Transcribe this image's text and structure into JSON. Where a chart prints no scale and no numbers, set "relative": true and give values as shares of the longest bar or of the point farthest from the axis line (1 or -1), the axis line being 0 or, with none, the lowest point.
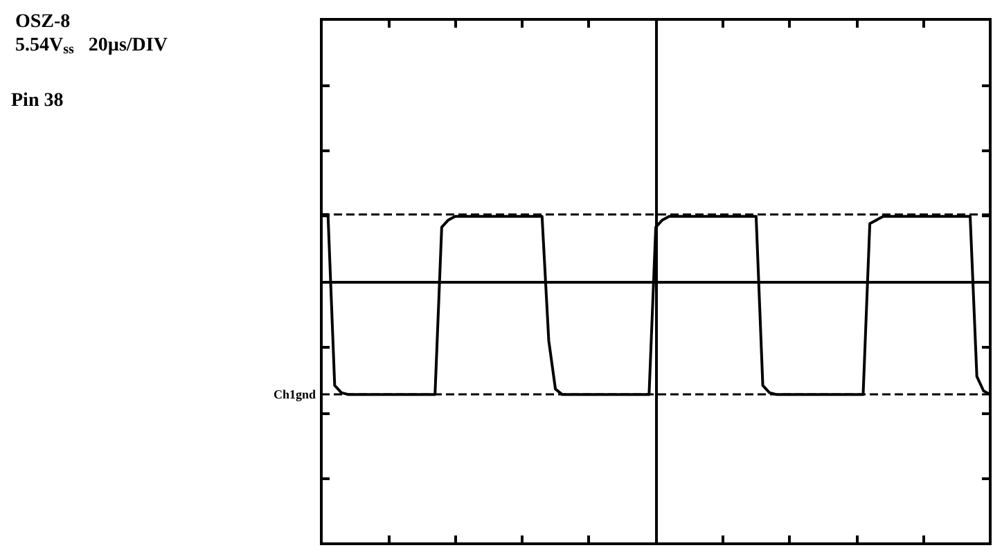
{
  "chart_data": {
    "type": "line",
    "title": "OSZ-8",
    "subtitle": "5.54V$_{ss}$   20µs/DIV",
    "annotations": [
      "Pin 38"
    ],
    "relative": true,
    "categories": [
      null,
      null,
      null,
      null,
      null,
      null,
      null,
      null,
      null,
      null,
      null,
      null,
      null,
      null,
      null,
      null,
      null,
      null,
      null,
      null,
      null,
      null,
      null,
      null,
      null,
      null,
      null,
      null,
      null,
      null,
      null,
      null,
      null,
      null,
      null,
      null,
      null,
      null,
      null,
      null,
      null,
      null,
      null,
      null,
      null,
      null,
      null,
      null,
      null,
      null,
      null,
      null,
      null,
      null,
      null,
      null,
      null,
      null,
      null,
      null,
      null,
      null,
      null,
      null,
      null,
      null,
      null,
      null,
      null,
      null,
      null,
      null,
      null,
      null,
      null,
      null,
      null,
      null,
      null,
      null,
      null,
      null,
      null,
      null,
      null,
      null,
      null,
      null,
      null,
      null,
      null,
      null,
      null,
      null,
      null,
      null,
      null,
      null,
      null,
      null,
      null
    ],
    "series": [
      {
        "color": "#000000",
        "values": [
          1,
          1,
          0.05,
          0.01,
          0,
          0,
          0,
          0,
          0,
          0,
          0,
          0,
          0,
          0,
          0,
          0,
          0,
          0,
          0.93,
          0.97,
          0.99,
          0.99,
          0.99,
          0.99,
          0.99,
          0.99,
          0.99,
          0.99,
          0.99,
          0.99,
          0.99,
          0.99,
          0.99,
          0.99,
          0.3,
          0.03,
          0,
          0,
          0,
          0,
          0,
          0,
          0,
          0,
          0,
          0,
          0,
          0,
          0,
          0,
          0.93,
          0.97,
          0.99,
          0.99,
          0.99,
          0.99,
          0.99,
          0.99,
          0.99,
          0.99,
          0.99,
          0.99,
          0.99,
          0.99,
          0.99,
          0.99,
          0.05,
          0.01,
          0,
          0,
          0,
          0,
          0,
          0,
          0,
          0,
          0,
          0,
          0,
          0,
          0,
          0,
          0.95,
          0.97,
          0.99,
          0.99,
          0.99,
          0.99,
          0.99,
          0.99,
          0.99,
          0.99,
          0.99,
          0.99,
          0.99,
          0.99,
          0.99,
          0.99,
          0.1,
          0.02,
          0
        ]
      }
    ],
    "marker": "none",
    "line_style": "solid",
    "ref_lines": [
      {
        "axis": "y",
        "value": 1,
        "label": null,
        "line_style": "dashed"
      },
      {
        "axis": "y",
        "value": 0,
        "label": "Ch1gnd",
        "line_style": "dashed"
      }
    ]
  }
}
